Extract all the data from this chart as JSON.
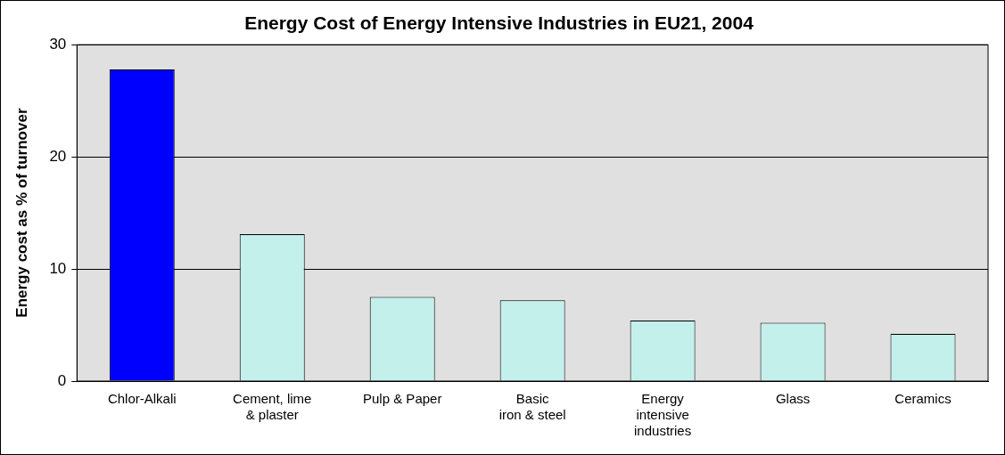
{
  "chart_data": {
    "type": "bar",
    "title": "Energy Cost of Energy Intensive Industries in EU21, 2004",
    "ylabel": "Energy cost as % of turnover",
    "categories": [
      "Chlor-Alkali",
      "Cement, lime\n& plaster",
      "Pulp & Paper",
      "Basic\niron & steel",
      "Energy\nintensive\nindustries",
      "Glass",
      "Ceramics"
    ],
    "values": [
      27.8,
      13.1,
      7.5,
      7.2,
      5.4,
      5.2,
      4.2
    ],
    "colors": [
      "#0000ff",
      "#c4f0ec",
      "#c4f0ec",
      "#c4f0ec",
      "#c4f0ec",
      "#c4f0ec",
      "#c4f0ec"
    ],
    "ylim": [
      0,
      30
    ],
    "yticks": [
      0,
      10,
      20,
      30
    ],
    "grid": "y",
    "legend": false
  }
}
